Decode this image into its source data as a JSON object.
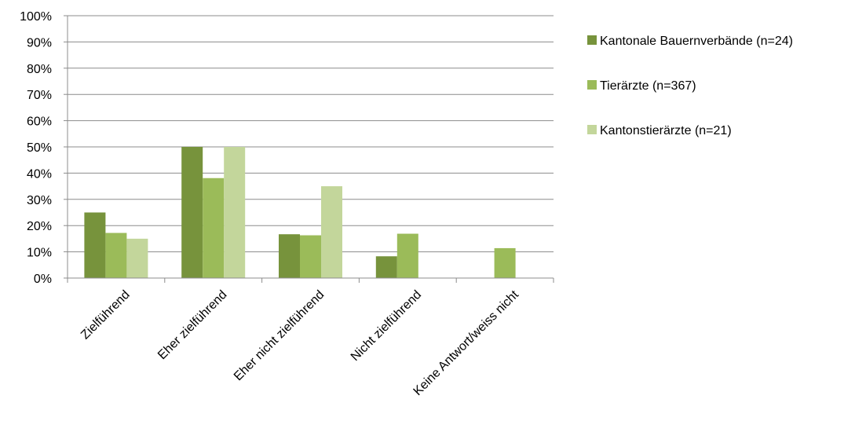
{
  "chart_data": {
    "type": "bar",
    "categories": [
      "Zielführend",
      "Eher zielführend",
      "Eher nicht zielführend",
      "Nicht zielführend",
      "Keine Antwort/weiss nicht"
    ],
    "series": [
      {
        "name": "Kantonale Bauernverbände (n=24)",
        "color": "#77933c",
        "values": [
          25,
          50,
          16.7,
          8.3,
          0
        ]
      },
      {
        "name": "Tierärzte (n=367)",
        "color": "#9bbb59",
        "values": [
          17.2,
          38.1,
          16.3,
          16.9,
          11.4
        ]
      },
      {
        "name": "Kantonstierärzte (n=21)",
        "color": "#c3d69b",
        "values": [
          15,
          50,
          35,
          0,
          0
        ]
      }
    ],
    "yticks": [
      "0%",
      "10%",
      "20%",
      "30%",
      "40%",
      "50%",
      "60%",
      "70%",
      "80%",
      "90%",
      "100%"
    ],
    "ylim": [
      0,
      100
    ],
    "grid": true,
    "legend_position": "right"
  }
}
